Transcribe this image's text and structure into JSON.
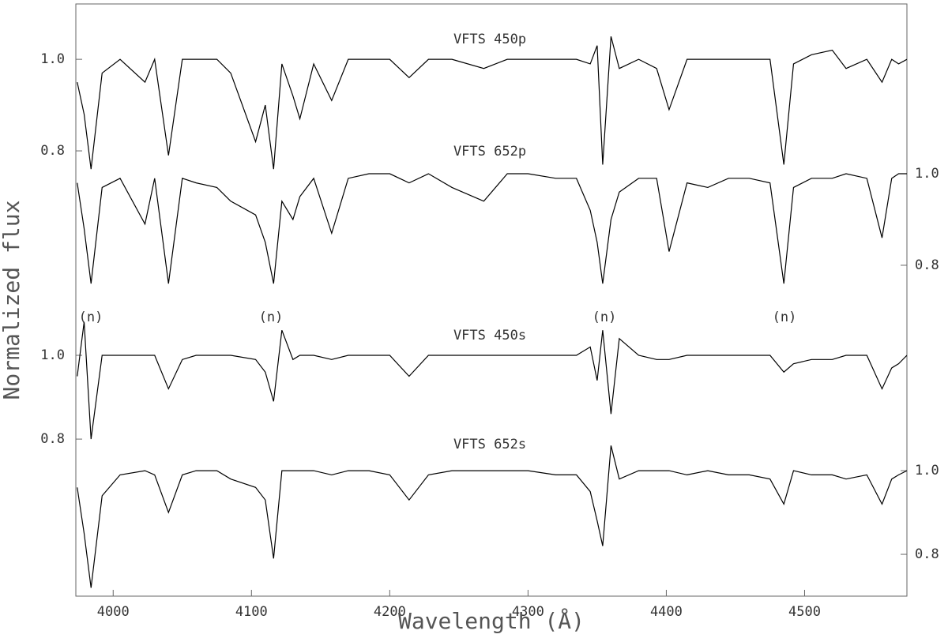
{
  "chart_data": [
    {
      "type": "line",
      "ylabel": "Normalized flux",
      "xlim": [
        3973,
        4574
      ],
      "ylim": [
        0.474,
        1.121
      ],
      "yticks": [
        {
          "value": 1.0,
          "label": "1.0"
        },
        0.8
      ],
      "y2lim": [
        0.724,
        1.371
      ],
      "y2ticks": [
        {
          "value": 1.0,
          "label": "1.0"
        },
        0.8
      ],
      "x": [
        3974,
        3979,
        3984,
        3992,
        4005,
        4023,
        4030,
        4040,
        4050,
        4060,
        4075,
        4085,
        4103,
        4110,
        4116,
        4122,
        4130,
        4135,
        4145,
        4158,
        4170,
        4185,
        4200,
        4214,
        4228,
        4245,
        4268,
        4285,
        4300,
        4320,
        4335,
        4345,
        4350,
        4354,
        4360,
        4366,
        4380,
        4393,
        4402,
        4415,
        4430,
        4445,
        4460,
        4475,
        4485,
        4492,
        4505,
        4520,
        4530,
        4545,
        4556,
        4563,
        4568,
        4574
      ],
      "series": [
        {
          "name": "VFTS 450p",
          "color": "#000000",
          "values": [
            0.95,
            0.88,
            0.76,
            0.97,
            1.0,
            0.95,
            1.0,
            0.79,
            1.0,
            1.0,
            1.0,
            0.97,
            0.82,
            0.9,
            0.76,
            0.99,
            0.92,
            0.87,
            0.99,
            0.91,
            1.0,
            1.0,
            1.0,
            0.96,
            1.0,
            1.0,
            0.98,
            1.0,
            1.0,
            1.0,
            1.0,
            0.99,
            1.03,
            0.77,
            1.05,
            0.98,
            1.0,
            0.98,
            0.89,
            1.0,
            1.0,
            1.0,
            1.0,
            1.0,
            0.77,
            0.99,
            1.01,
            1.02,
            0.98,
            1.0,
            0.95,
            1.0,
            0.99,
            1.0
          ]
        },
        {
          "name": "VFTS 652p",
          "color": "#000000",
          "axis": "y2",
          "values": [
            0.98,
            0.88,
            0.76,
            0.97,
            0.99,
            0.89,
            0.99,
            0.76,
            0.99,
            0.98,
            0.97,
            0.94,
            0.91,
            0.85,
            0.76,
            0.94,
            0.9,
            0.95,
            0.99,
            0.87,
            0.99,
            1.0,
            1.0,
            0.98,
            1.0,
            0.97,
            0.94,
            1.0,
            1.0,
            0.99,
            0.99,
            0.92,
            0.85,
            0.76,
            0.9,
            0.96,
            0.99,
            0.99,
            0.83,
            0.98,
            0.97,
            0.99,
            0.99,
            0.98,
            0.76,
            0.97,
            0.99,
            0.99,
            1.0,
            0.99,
            0.86,
            0.99,
            1.0,
            1.0
          ]
        }
      ]
    },
    {
      "type": "line",
      "xlabel": "Wavelength (Å)",
      "xlim": [
        3973,
        4574
      ],
      "xticks": [
        4000,
        4100,
        4200,
        4300,
        4400,
        4500
      ],
      "ylim": [
        0.425,
        1.132
      ],
      "yticks": [
        {
          "value": 1.0,
          "label": "1.0"
        },
        0.8
      ],
      "y2lim": [
        0.7,
        1.408
      ],
      "y2ticks": [
        {
          "value": 1.0,
          "label": "1.0"
        },
        0.8
      ],
      "annotations": [
        "(n)",
        "(n)",
        "(n)",
        "(n)"
      ],
      "x": [
        3974,
        3979,
        3984,
        3992,
        4005,
        4023,
        4030,
        4040,
        4050,
        4060,
        4075,
        4085,
        4103,
        4110,
        4116,
        4122,
        4130,
        4135,
        4145,
        4158,
        4170,
        4185,
        4200,
        4214,
        4228,
        4245,
        4268,
        4285,
        4300,
        4320,
        4335,
        4345,
        4350,
        4354,
        4360,
        4366,
        4380,
        4393,
        4402,
        4415,
        4430,
        4445,
        4460,
        4475,
        4485,
        4492,
        4505,
        4520,
        4530,
        4545,
        4556,
        4563,
        4568,
        4574
      ],
      "series": [
        {
          "name": "VFTS 450s",
          "color": "#000000",
          "values": [
            0.95,
            1.08,
            0.8,
            1.0,
            1.0,
            1.0,
            1.0,
            0.92,
            0.99,
            1.0,
            1.0,
            1.0,
            0.99,
            0.96,
            0.89,
            1.06,
            0.99,
            1.0,
            1.0,
            0.99,
            1.0,
            1.0,
            1.0,
            0.95,
            1.0,
            1.0,
            1.0,
            1.0,
            1.0,
            1.0,
            1.0,
            1.02,
            0.94,
            1.06,
            0.86,
            1.04,
            1.0,
            0.99,
            0.99,
            1.0,
            1.0,
            1.0,
            1.0,
            1.0,
            0.96,
            0.98,
            0.99,
            0.99,
            1.0,
            1.0,
            0.92,
            0.97,
            0.98,
            1.0
          ]
        },
        {
          "name": "VFTS 652s",
          "color": "#000000",
          "axis": "y2",
          "values": [
            0.96,
            0.85,
            0.72,
            0.94,
            0.99,
            1.0,
            0.99,
            0.9,
            0.99,
            1.0,
            1.0,
            0.98,
            0.96,
            0.93,
            0.79,
            1.0,
            1.0,
            1.0,
            1.0,
            0.99,
            1.0,
            1.0,
            0.99,
            0.93,
            0.99,
            1.0,
            1.0,
            1.0,
            1.0,
            0.99,
            0.99,
            0.95,
            0.88,
            0.82,
            1.06,
            0.98,
            1.0,
            1.0,
            1.0,
            0.99,
            1.0,
            0.99,
            0.99,
            0.98,
            0.92,
            1.0,
            0.99,
            0.99,
            0.98,
            0.99,
            0.92,
            0.98,
            0.99,
            1.0
          ]
        }
      ]
    }
  ]
}
